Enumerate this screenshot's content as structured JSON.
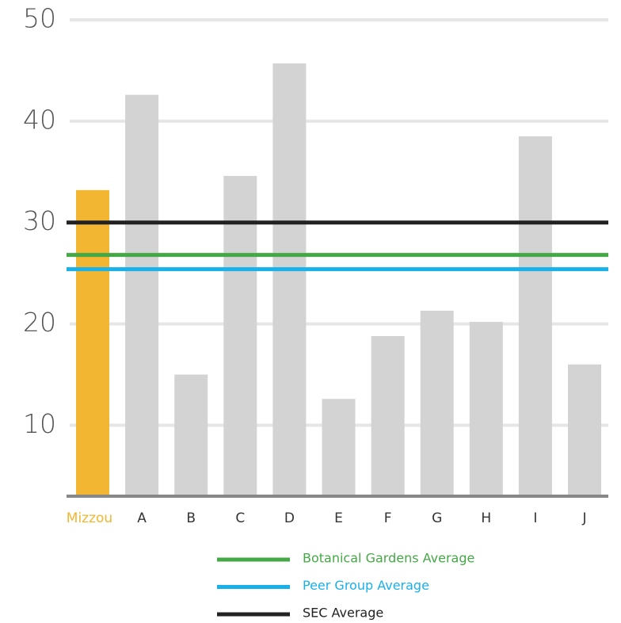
{
  "chart_data": {
    "type": "bar",
    "categories": [
      "Mizzou",
      "A",
      "B",
      "C",
      "D",
      "E",
      "F",
      "G",
      "H",
      "I",
      "J"
    ],
    "values": [
      33.2,
      42.6,
      15.0,
      34.6,
      45.7,
      12.6,
      18.8,
      21.3,
      20.2,
      38.5,
      16.0
    ],
    "colors": [
      "#f2b632",
      "#d3d3d3",
      "#d3d3d3",
      "#d3d3d3",
      "#d3d3d3",
      "#d3d3d3",
      "#d3d3d3",
      "#d3d3d3",
      "#d3d3d3",
      "#d3d3d3",
      "#d3d3d3"
    ],
    "label_colors": [
      "#f2b632",
      "#333333",
      "#333333",
      "#333333",
      "#333333",
      "#333333",
      "#333333",
      "#333333",
      "#333333",
      "#333333",
      "#333333"
    ],
    "ylim": [
      3,
      50
    ],
    "yticks": [
      10,
      20,
      30,
      40,
      50
    ],
    "grid": true,
    "reference_lines": [
      {
        "name": "Botanical Gardens Average",
        "color": "#45a846",
        "value": 26.8
      },
      {
        "name": "Peer Group Average",
        "color": "#1ab0e8",
        "value": 25.4
      },
      {
        "name": "SEC Average",
        "color": "#222222",
        "value": 30.0
      }
    ]
  }
}
